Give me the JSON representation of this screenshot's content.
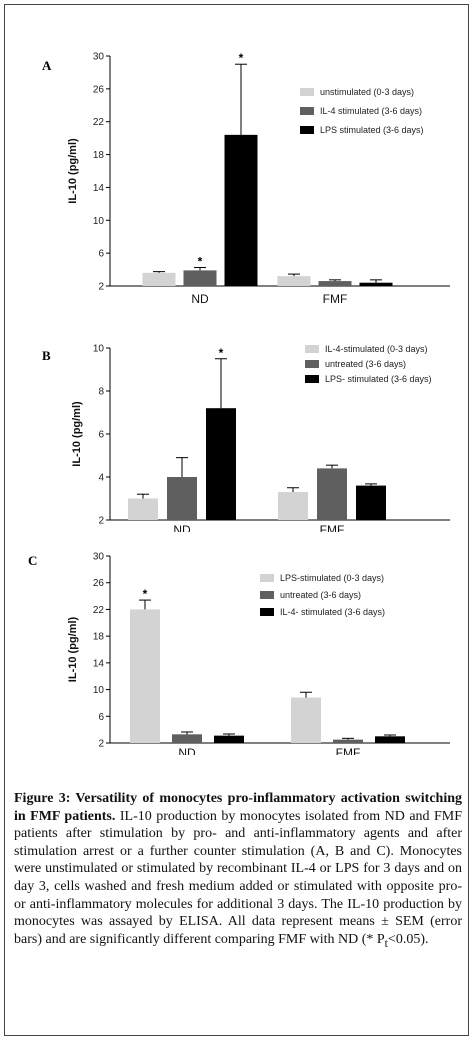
{
  "figure": {
    "caption_title": "Figure 3: Versatility of monocytes pro-inflammatory activation switching in FMF patients.",
    "caption_body": "IL-10 production by monocytes isolated from ND and FMF patients after stimulation by pro- and anti-inflammatory agents and after stimulation arrest or a further counter stimulation (A, B and C). Monocytes were unstimulated or stimulated by recombinant IL-4 or LPS for 3 days and on day 3, cells washed and fresh medium added or stimulated with opposite pro- or anti-inflammatory molecules for additional 3 days. The IL-10 production by monocytes was assayed by ELISA. All data represent means ± SEM (error bars) and are significantly different comparing FMF with ND (* P",
    "caption_sub": "t",
    "caption_end": "<0.05)."
  },
  "chart_data": [
    {
      "panel": "A",
      "type": "bar",
      "ylabel": "IL-10 (pg/ml)",
      "ylim": [
        2,
        30
      ],
      "yticks": [
        "2",
        "6",
        "10",
        "14",
        "18",
        "22",
        "26",
        "30"
      ],
      "categories": [
        "ND",
        "FMF"
      ],
      "series": [
        {
          "name": "unstimulated  (0-3 days)",
          "color": "#d3d3d3",
          "values": [
            3.6,
            3.2
          ],
          "errors": [
            0.15,
            0.25
          ]
        },
        {
          "name": "IL-4 stimulated (3-6 days)",
          "color": "#5f5f5f",
          "values": [
            3.9,
            2.6
          ],
          "errors": [
            0.35,
            0.15
          ]
        },
        {
          "name": "LPS stimulated (3-6 days)",
          "color": "#000000",
          "values": [
            20.4,
            2.4
          ],
          "errors": [
            8.6,
            0.35
          ]
        }
      ],
      "significant": [
        [
          0,
          1
        ],
        [
          0,
          2
        ]
      ],
      "star": "*"
    },
    {
      "panel": "B",
      "type": "bar",
      "ylabel": "IL-10 (pg/ml)",
      "ylim": [
        2,
        10
      ],
      "yticks": [
        "2",
        "4",
        "6",
        "8",
        "10"
      ],
      "categories": [
        "ND",
        "FMF"
      ],
      "series": [
        {
          "name": "IL-4-stimulated (0-3 days)",
          "color": "#d3d3d3",
          "values": [
            3.0,
            3.3
          ],
          "errors": [
            0.2,
            0.2
          ]
        },
        {
          "name": "untreated (3-6 days)",
          "color": "#5f5f5f",
          "values": [
            4.0,
            4.4
          ],
          "errors": [
            0.9,
            0.15
          ]
        },
        {
          "name": "LPS- stimulated (3-6 days)",
          "color": "#000000",
          "values": [
            7.2,
            3.6
          ],
          "errors": [
            2.3,
            0.08
          ]
        }
      ],
      "significant": [
        [
          0,
          2
        ]
      ],
      "star": "*"
    },
    {
      "panel": "C",
      "type": "bar",
      "ylabel": "IL-10 (pg/ml)",
      "ylim": [
        2,
        30
      ],
      "yticks": [
        "2",
        "6",
        "10",
        "14",
        "18",
        "22",
        "26",
        "30"
      ],
      "categories": [
        "ND",
        "FMF"
      ],
      "series": [
        {
          "name": "LPS-stimulated (0-3 days)",
          "color": "#d3d3d3",
          "values": [
            22.0,
            8.8
          ],
          "errors": [
            1.4,
            0.8
          ]
        },
        {
          "name": "untreated (3-6 days)",
          "color": "#5f5f5f",
          "values": [
            3.3,
            2.5
          ],
          "errors": [
            0.35,
            0.2
          ]
        },
        {
          "name": "IL-4- stimulated (3-6 days)",
          "color": "#000000",
          "values": [
            3.1,
            3.0
          ],
          "errors": [
            0.25,
            0.2
          ]
        }
      ],
      "significant": [
        [
          0,
          0
        ]
      ],
      "star": "*"
    }
  ]
}
